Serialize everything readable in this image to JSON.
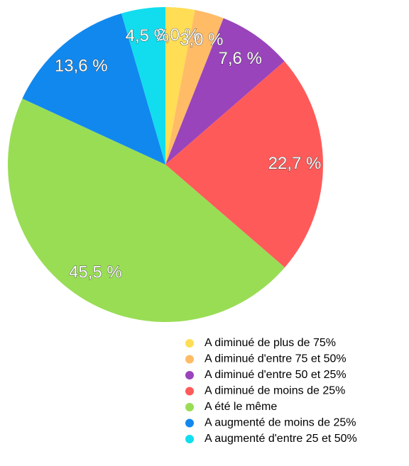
{
  "chart_data": {
    "type": "pie",
    "categories": [
      "A diminué de plus de 75%",
      "A diminué d'entre 75 et 50%",
      "A diminué d'entre 50 et 25%",
      "A diminué de moins de 25%",
      "A été le même",
      "A augmenté de moins de 25%",
      "A augmenté d'entre 25 et 50%"
    ],
    "values": [
      3.0,
      3.0,
      7.6,
      22.7,
      45.5,
      13.6,
      4.5
    ],
    "value_labels": [
      "3,0 %",
      "3,0 %",
      "7,6 %",
      "22,7 %",
      "45,5 %",
      "13,6 %",
      "4,5 %"
    ],
    "colors": [
      "#ffdd55",
      "#ffbb66",
      "#9944bb",
      "#ff5a5a",
      "#99dd55",
      "#1188ee",
      "#11ddee"
    ]
  }
}
